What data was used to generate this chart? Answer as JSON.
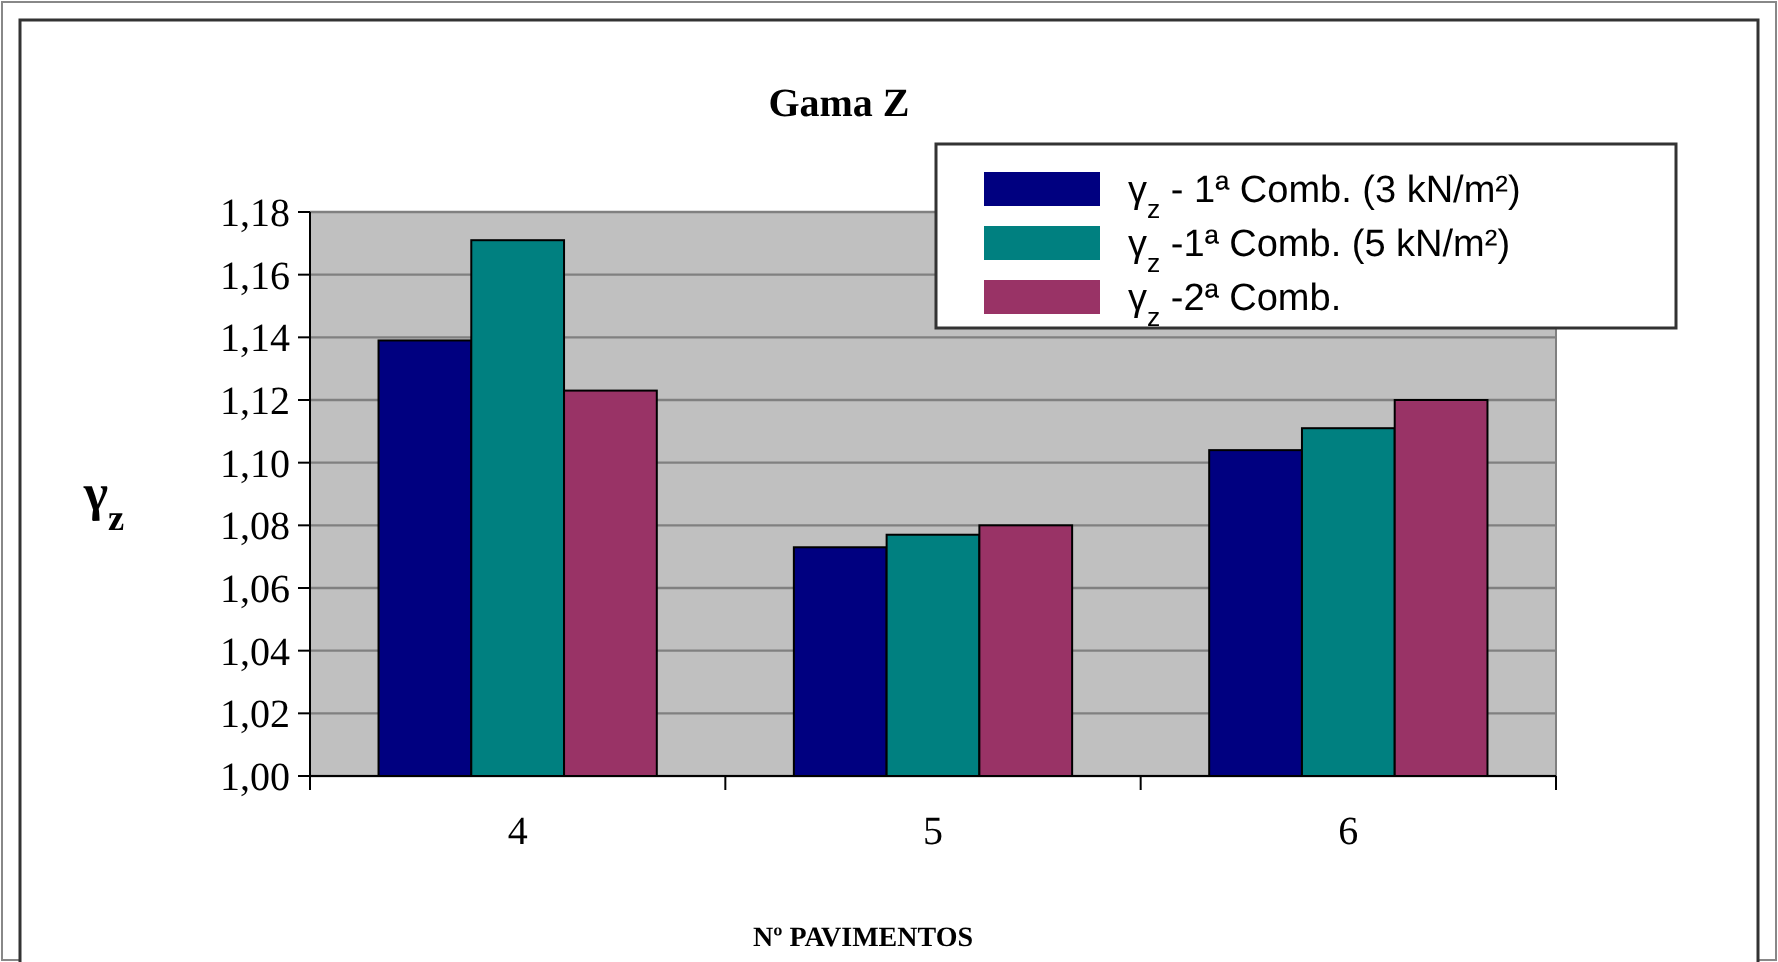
{
  "chart_data": {
    "type": "bar",
    "title": "Gama Z",
    "xlabel": "Nº PAVIMENTOS",
    "ylabel": "γ$_{z}$",
    "categories": [
      "4",
      "5",
      "6"
    ],
    "series": [
      {
        "name": "γ$_{z}$ - 1ª Comb. (3 kN/m²)",
        "color": "#000080",
        "values": [
          1.139,
          1.073,
          1.104
        ]
      },
      {
        "name": "γ$_{z}$ -1ª Comb. (5 kN/m²)",
        "color": "#008080",
        "values": [
          1.171,
          1.077,
          1.111
        ]
      },
      {
        "name": "γ$_{z}$ -2ª Comb.",
        "color": "#993366",
        "values": [
          1.123,
          1.08,
          1.12
        ]
      }
    ],
    "ylim": [
      1.0,
      1.18
    ],
    "yticks": [
      {
        "value": 1.0,
        "label": "1,00"
      },
      {
        "value": 1.02,
        "label": "1,02"
      },
      {
        "value": 1.04,
        "label": "1,04"
      },
      {
        "value": 1.06,
        "label": "1,06"
      },
      {
        "value": 1.08,
        "label": "1,08"
      },
      {
        "value": 1.1,
        "label": "1,10"
      },
      {
        "value": 1.12,
        "label": "1,12"
      },
      {
        "value": 1.14,
        "label": "1,14"
      },
      {
        "value": 1.16,
        "label": "1,16"
      },
      {
        "value": 1.18,
        "label": "1,18"
      }
    ],
    "grid": "y",
    "legend": "top right"
  }
}
